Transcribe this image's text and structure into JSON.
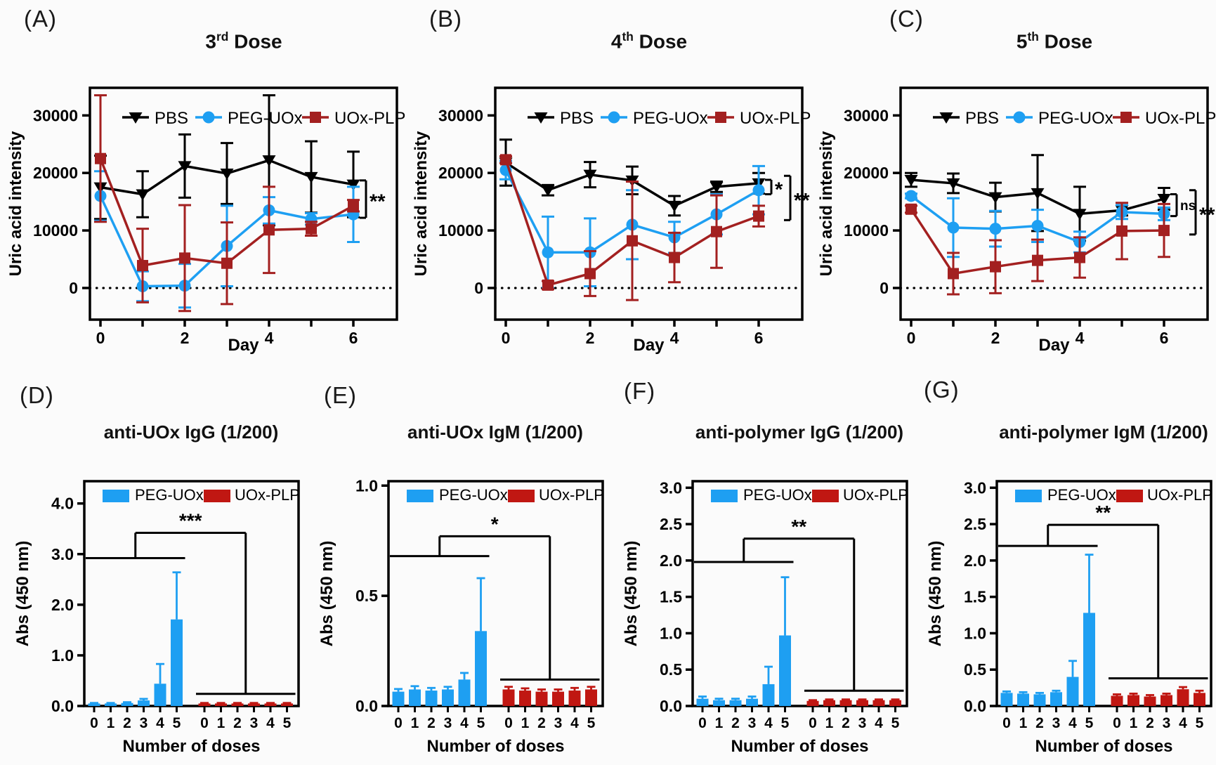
{
  "colors": {
    "pbs": "#000000",
    "peg_uox": "#1E9FF2",
    "uox_plp_line": "#A32020",
    "uox_plp_bar": "#C01712",
    "axis": "#000000"
  },
  "chart_data": [
    {
      "id": "A",
      "type": "line",
      "panel_label": "(A)",
      "title": {
        "base": "3",
        "sup": "rd",
        "rest": " Dose"
      },
      "xlabel": "Day",
      "ylabel": "Uric acid intensity",
      "x": [
        0,
        1,
        2,
        3,
        4,
        5,
        6
      ],
      "x_tick_labels": [
        "0",
        "",
        "2",
        "",
        "4",
        "",
        "6"
      ],
      "y_ticks": [
        0,
        10000,
        20000,
        30000
      ],
      "y_tick_labels": [
        "0",
        "10000",
        "20000",
        "30000"
      ],
      "ylim": [
        -5500,
        34800
      ],
      "grid": false,
      "legend_position": "top-inside",
      "zero_line": true,
      "series": [
        {
          "name": "PBS",
          "marker": "triangle-down",
          "color": "#000000",
          "values": [
            17500,
            16300,
            21200,
            19900,
            22200,
            19300,
            18000
          ],
          "err": [
            5500,
            4000,
            5500,
            5300,
            11300,
            6200,
            5700
          ]
        },
        {
          "name": "PEG-UOx",
          "marker": "circle",
          "color": "#1E9FF2",
          "values": [
            16000,
            300,
            400,
            7300,
            13500,
            12000,
            12800
          ],
          "err": [
            4300,
            2600,
            3800,
            7000,
            2300,
            1000,
            4800
          ]
        },
        {
          "name": "UOx-PLP",
          "marker": "square",
          "color": "#A32020",
          "values": [
            22500,
            3900,
            5200,
            4300,
            10100,
            10300,
            14300
          ],
          "err": [
            11000,
            6400,
            9200,
            7100,
            7500,
            1200,
            1000
          ]
        }
      ],
      "sig_brackets": [
        {
          "label": "**",
          "y_top": 18700,
          "y_bot": 12200,
          "offset": 0
        }
      ]
    },
    {
      "id": "B",
      "type": "line",
      "panel_label": "(B)",
      "title": {
        "base": "4",
        "sup": "th",
        "rest": " Dose"
      },
      "xlabel": "Day",
      "ylabel": "Uric acid intensity",
      "x": [
        0,
        1,
        2,
        3,
        4,
        5,
        6
      ],
      "x_tick_labels": [
        "0",
        "",
        "2",
        "",
        "4",
        "",
        "6"
      ],
      "y_ticks": [
        0,
        10000,
        20000,
        30000
      ],
      "y_tick_labels": [
        "0",
        "10000",
        "20000",
        "30000"
      ],
      "ylim": [
        -5500,
        34800
      ],
      "grid": false,
      "legend_position": "top-inside",
      "zero_line": true,
      "series": [
        {
          "name": "PBS",
          "marker": "triangle-down",
          "color": "#000000",
          "values": [
            21800,
            17000,
            19700,
            18700,
            14300,
            17600,
            18200
          ],
          "err": [
            4000,
            900,
            2200,
            2400,
            1700,
            900,
            1800
          ]
        },
        {
          "name": "PEG-UOx",
          "marker": "circle",
          "color": "#1E9FF2",
          "values": [
            20500,
            6200,
            6200,
            11000,
            8800,
            12800,
            17000
          ],
          "err": [
            1600,
            6200,
            5900,
            6000,
            2700,
            3500,
            4200
          ]
        },
        {
          "name": "UOx-PLP",
          "marker": "square",
          "color": "#A32020",
          "values": [
            22300,
            500,
            2500,
            8200,
            5300,
            9800,
            12500
          ],
          "err": [
            600,
            700,
            3900,
            10300,
            4300,
            6300,
            1800
          ]
        }
      ],
      "sig_brackets": [
        {
          "label": "*",
          "y_top": 18800,
          "y_bot": 16300,
          "offset": 0
        },
        {
          "label": "**",
          "y_top": 19500,
          "y_bot": 11800,
          "offset": 1
        }
      ]
    },
    {
      "id": "C",
      "type": "line",
      "panel_label": "(C)",
      "title": {
        "base": "5",
        "sup": "th",
        "rest": " Dose"
      },
      "xlabel": "Day",
      "ylabel": "Uric acid intensity",
      "x": [
        0,
        1,
        2,
        3,
        4,
        5,
        6
      ],
      "x_tick_labels": [
        "0",
        "",
        "2",
        "",
        "4",
        "",
        "6"
      ],
      "y_ticks": [
        0,
        10000,
        20000,
        30000
      ],
      "y_tick_labels": [
        "0",
        "10000",
        "20000",
        "30000"
      ],
      "ylim": [
        -5500,
        34800
      ],
      "grid": false,
      "legend_position": "top-inside",
      "zero_line": true,
      "series": [
        {
          "name": "PBS",
          "marker": "triangle-down",
          "color": "#000000",
          "values": [
            18800,
            18200,
            15800,
            16500,
            12900,
            13500,
            15500
          ],
          "err": [
            1200,
            1700,
            2500,
            6600,
            4700,
            900,
            1900
          ]
        },
        {
          "name": "PEG-UOx",
          "marker": "circle",
          "color": "#1E9FF2",
          "values": [
            16000,
            10500,
            10300,
            10800,
            8000,
            13200,
            12900
          ],
          "err": [
            400,
            5100,
            3100,
            2800,
            1800,
            1200,
            1100
          ]
        },
        {
          "name": "UOx-PLP",
          "marker": "square",
          "color": "#A32020",
          "values": [
            13700,
            2500,
            3700,
            4800,
            5300,
            9900,
            10000
          ],
          "err": [
            600,
            3600,
            4600,
            3600,
            3500,
            4900,
            4600
          ]
        }
      ],
      "sig_brackets": [
        {
          "label": "ns",
          "y_top": 16300,
          "y_bot": 12500,
          "offset": 0
        },
        {
          "label": "**",
          "y_top": 17000,
          "y_bot": 9300,
          "offset": 1
        }
      ]
    },
    {
      "id": "D",
      "type": "bar",
      "panel_label": "(D)",
      "title": {
        "base": "anti-UOx IgG (1/200)"
      },
      "xlabel": "Number of doses",
      "ylabel": "Abs (450 nm)",
      "categories": [
        "0",
        "1",
        "2",
        "3",
        "4",
        "5"
      ],
      "y_ticks": [
        0,
        1,
        2,
        3,
        4
      ],
      "y_tick_labels": [
        "0.0",
        "1.0",
        "2.0",
        "3.0",
        "4.0"
      ],
      "ylim": [
        0,
        4.44
      ],
      "grid": false,
      "legend_position": "top-inside",
      "series": [
        {
          "name": "PEG-UOx",
          "color": "#1E9FF2",
          "values": [
            0.05,
            0.05,
            0.06,
            0.11,
            0.44,
            1.71
          ],
          "err": [
            0.01,
            0.01,
            0.015,
            0.03,
            0.39,
            0.93
          ]
        },
        {
          "name": "UOx-PLP",
          "color": "#C01712",
          "values": [
            0.05,
            0.05,
            0.05,
            0.05,
            0.05,
            0.05
          ],
          "err": [
            0.01,
            0.01,
            0.01,
            0.01,
            0.01,
            0.01
          ]
        }
      ],
      "sig": {
        "label": "***",
        "peg_line_y": 2.92,
        "uox_line_y": 0.24,
        "top_y": 3.42
      }
    },
    {
      "id": "E",
      "type": "bar",
      "panel_label": "(E)",
      "title": {
        "base": "anti-UOx IgM (1/200)"
      },
      "xlabel": "Number of doses",
      "ylabel": "Abs (450 nm)",
      "categories": [
        "0",
        "1",
        "2",
        "3",
        "4",
        "5"
      ],
      "y_ticks": [
        0,
        0.5,
        1.0
      ],
      "y_tick_labels": [
        "0.0",
        "0.5",
        "1.0"
      ],
      "ylim": [
        0,
        1.02
      ],
      "grid": false,
      "legend_position": "top-inside",
      "series": [
        {
          "name": "PEG-UOx",
          "color": "#1E9FF2",
          "values": [
            0.065,
            0.075,
            0.07,
            0.075,
            0.12,
            0.34
          ],
          "err": [
            0.012,
            0.015,
            0.012,
            0.012,
            0.03,
            0.24
          ]
        },
        {
          "name": "UOx-PLP",
          "color": "#C01712",
          "values": [
            0.075,
            0.07,
            0.065,
            0.065,
            0.07,
            0.075
          ],
          "err": [
            0.012,
            0.01,
            0.01,
            0.01,
            0.012,
            0.012
          ]
        }
      ],
      "sig": {
        "label": "*",
        "peg_line_y": 0.68,
        "uox_line_y": 0.12,
        "top_y": 0.77
      }
    },
    {
      "id": "F",
      "type": "bar",
      "panel_label": "(F)",
      "title": {
        "base": "anti-polymer IgG (1/200)"
      },
      "xlabel": "Number of doses",
      "ylabel": "Abs (450 nm)",
      "categories": [
        "0",
        "1",
        "2",
        "3",
        "4",
        "5"
      ],
      "y_ticks": [
        0,
        0.5,
        1.0,
        1.5,
        2.0,
        2.5,
        3.0
      ],
      "y_tick_labels": [
        "0.0",
        "0.5",
        "1.0",
        "1.5",
        "2.0",
        "2.5",
        "3.0"
      ],
      "ylim": [
        0,
        3.09
      ],
      "grid": false,
      "legend_position": "top-inside",
      "series": [
        {
          "name": "PEG-UOx",
          "color": "#1E9FF2",
          "values": [
            0.1,
            0.08,
            0.08,
            0.1,
            0.3,
            0.97
          ],
          "err": [
            0.03,
            0.02,
            0.02,
            0.03,
            0.24,
            0.8
          ]
        },
        {
          "name": "UOx-PLP",
          "color": "#C01712",
          "values": [
            0.07,
            0.08,
            0.08,
            0.08,
            0.08,
            0.08
          ],
          "err": [
            0.01,
            0.01,
            0.01,
            0.01,
            0.01,
            0.01
          ]
        }
      ],
      "sig": {
        "label": "**",
        "peg_line_y": 1.98,
        "uox_line_y": 0.21,
        "top_y": 2.3
      }
    },
    {
      "id": "G",
      "type": "bar",
      "panel_label": "(G)",
      "title": {
        "base": "anti-polymer IgM (1/200)"
      },
      "xlabel": "Number of doses",
      "ylabel": "Abs (450 nm)",
      "categories": [
        "0",
        "1",
        "2",
        "3",
        "4",
        "5"
      ],
      "y_ticks": [
        0,
        0.5,
        1.0,
        1.5,
        2.0,
        2.5,
        3.0
      ],
      "y_tick_labels": [
        "0.0",
        "0.5",
        "1.0",
        "1.5",
        "2.0",
        "2.5",
        "3.0"
      ],
      "ylim": [
        0,
        3.09
      ],
      "grid": false,
      "legend_position": "top-inside",
      "series": [
        {
          "name": "PEG-UOx",
          "color": "#1E9FF2",
          "values": [
            0.18,
            0.17,
            0.16,
            0.19,
            0.4,
            1.28
          ],
          "err": [
            0.02,
            0.02,
            0.02,
            0.02,
            0.22,
            0.8
          ]
        },
        {
          "name": "UOx-PLP",
          "color": "#C01712",
          "values": [
            0.14,
            0.15,
            0.13,
            0.15,
            0.23,
            0.18
          ],
          "err": [
            0.02,
            0.02,
            0.02,
            0.02,
            0.03,
            0.03
          ]
        }
      ],
      "sig": {
        "label": "**",
        "peg_line_y": 2.2,
        "uox_line_y": 0.38,
        "top_y": 2.49
      }
    }
  ]
}
